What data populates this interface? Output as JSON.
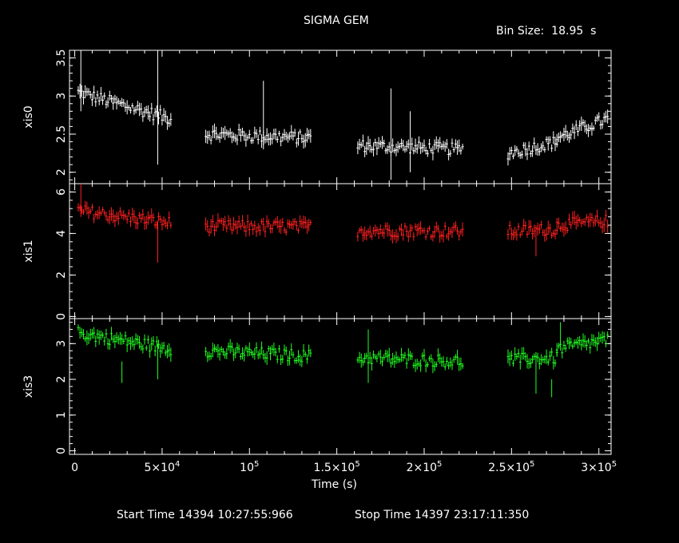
{
  "title": "SIGMA GEM",
  "bin_label": "Bin Size:  18.95  s",
  "xlabel": "Time (s)",
  "start_time": "Start Time 14394 10:27:55:966",
  "stop_time": "Stop Time 14397 23:17:11:350",
  "chart_data": [
    {
      "type": "scatter",
      "name": "xis0",
      "ylabel": "xis0",
      "color": "#ffffff",
      "xlim": [
        -3000,
        307000
      ],
      "ylim": [
        1.85,
        3.6
      ],
      "yticks": [
        2,
        2.5,
        3,
        3.5
      ],
      "ytick_labels": [
        "2",
        "2.5",
        "3",
        "3.5"
      ],
      "segments": [
        {
          "x_start": 2000,
          "x_end": 55000,
          "y_start": 3.05,
          "y_end": 2.7
        },
        {
          "x_start": 75000,
          "x_end": 135000,
          "y_start": 2.5,
          "y_end": 2.45
        },
        {
          "x_start": 162000,
          "x_end": 222000,
          "y_start": 2.35,
          "y_end": 2.3
        },
        {
          "x_start": 248000,
          "x_end": 276000,
          "y_start": 2.25,
          "y_end": 2.4
        },
        {
          "x_start": 276000,
          "x_end": 305000,
          "y_start": 2.45,
          "y_end": 2.7
        }
      ],
      "spikes": [
        {
          "x": 3500,
          "y_low": 2.8,
          "y_high": 3.6
        },
        {
          "x": 47500,
          "y_low": 2.1,
          "y_high": 3.6
        },
        {
          "x": 108000,
          "y_low": 2.3,
          "y_high": 3.2
        },
        {
          "x": 181000,
          "y_low": 1.9,
          "y_high": 3.1
        },
        {
          "x": 192000,
          "y_low": 2.0,
          "y_high": 2.8
        }
      ]
    },
    {
      "type": "scatter",
      "name": "xis1",
      "ylabel": "xis1",
      "color": "#ff2020",
      "xlim": [
        -3000,
        307000
      ],
      "ylim": [
        -0.1,
        6.4
      ],
      "yticks": [
        0,
        2,
        4,
        6
      ],
      "ytick_labels": [
        "0",
        "2",
        "4",
        "6"
      ],
      "segments": [
        {
          "x_start": 2000,
          "x_end": 55000,
          "y_start": 5.1,
          "y_end": 4.5
        },
        {
          "x_start": 75000,
          "x_end": 135000,
          "y_start": 4.35,
          "y_end": 4.3
        },
        {
          "x_start": 162000,
          "x_end": 222000,
          "y_start": 4.15,
          "y_end": 4.1
        },
        {
          "x_start": 248000,
          "x_end": 276000,
          "y_start": 4.1,
          "y_end": 4.2
        },
        {
          "x_start": 276000,
          "x_end": 305000,
          "y_start": 4.4,
          "y_end": 4.6
        }
      ],
      "spikes": [
        {
          "x": 3500,
          "y_low": 4.8,
          "y_high": 6.4
        },
        {
          "x": 47500,
          "y_low": 2.6,
          "y_high": 4.6
        },
        {
          "x": 264000,
          "y_low": 2.9,
          "y_high": 4.2
        }
      ]
    },
    {
      "type": "scatter",
      "name": "xis3",
      "ylabel": "xis3",
      "color": "#20ff20",
      "xlim": [
        -3000,
        307000
      ],
      "ylim": [
        -0.1,
        3.7
      ],
      "yticks": [
        0,
        1,
        2,
        3
      ],
      "ytick_labels": [
        "0",
        "1",
        "2",
        "3"
      ],
      "segments": [
        {
          "x_start": 2000,
          "x_end": 55000,
          "y_start": 3.3,
          "y_end": 2.85
        },
        {
          "x_start": 75000,
          "x_end": 135000,
          "y_start": 2.8,
          "y_end": 2.65
        },
        {
          "x_start": 162000,
          "x_end": 222000,
          "y_start": 2.6,
          "y_end": 2.5
        },
        {
          "x_start": 248000,
          "x_end": 276000,
          "y_start": 2.55,
          "y_end": 2.6
        },
        {
          "x_start": 276000,
          "x_end": 305000,
          "y_start": 2.85,
          "y_end": 3.1
        }
      ],
      "spikes": [
        {
          "x": 27000,
          "y_low": 1.9,
          "y_high": 2.5
        },
        {
          "x": 47500,
          "y_low": 2.0,
          "y_high": 3.0
        },
        {
          "x": 168000,
          "y_low": 1.9,
          "y_high": 3.4
        },
        {
          "x": 264000,
          "y_low": 1.6,
          "y_high": 2.6
        },
        {
          "x": 273000,
          "y_low": 1.5,
          "y_high": 2.0
        },
        {
          "x": 278000,
          "y_low": 2.8,
          "y_high": 3.6
        }
      ]
    }
  ],
  "x_axis": {
    "ticks": [
      0,
      50000,
      100000,
      150000,
      200000,
      250000,
      300000
    ],
    "labels": [
      {
        "base": "0",
        "exp": ""
      },
      {
        "base": "5×10",
        "exp": "4"
      },
      {
        "base": "10",
        "exp": "5"
      },
      {
        "base": "1.5×10",
        "exp": "5"
      },
      {
        "base": "2×10",
        "exp": "5"
      },
      {
        "base": "2.5×10",
        "exp": "5"
      },
      {
        "base": "3×10",
        "exp": "5"
      }
    ]
  }
}
